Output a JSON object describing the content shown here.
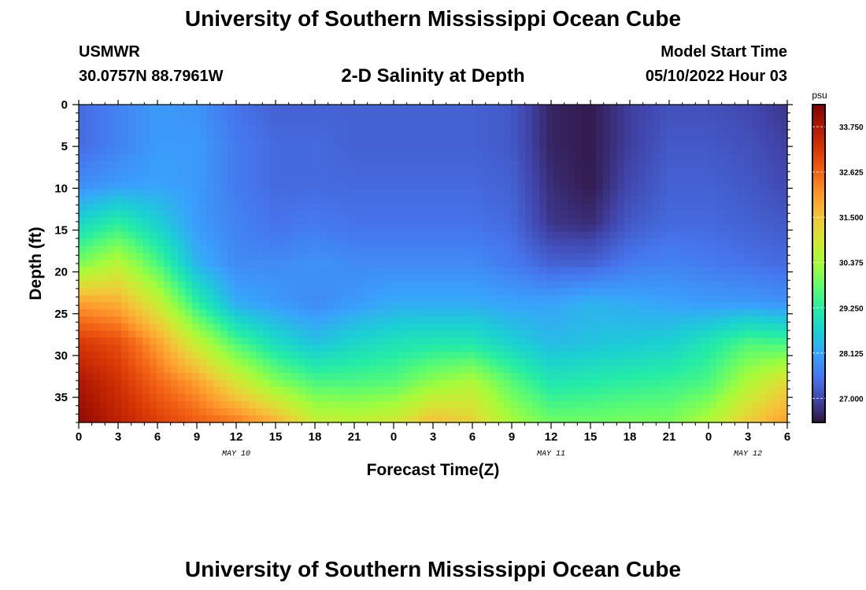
{
  "header": {
    "title": "University of Southern Mississippi Ocean Cube",
    "station": "USMWR",
    "coordinates": "30.0757N  88.7961W",
    "subtitle": "2-D Salinity at Depth",
    "model_start_label": "Model Start Time",
    "model_start_value": "05/10/2022 Hour 03"
  },
  "footer": {
    "title": "University of Southern Mississippi Ocean Cube"
  },
  "colors": {
    "colormap": [
      "#30123b",
      "#4145ab",
      "#4675ed",
      "#39a2fc",
      "#1bcfd4",
      "#24eca6",
      "#61fc6c",
      "#a4fc3b",
      "#d1e834",
      "#f3c63a",
      "#fe9b2d",
      "#f36315",
      "#d93806",
      "#b11901",
      "#7a0402"
    ]
  },
  "chart_data": {
    "type": "heatmap",
    "xlabel": "Forecast Time(Z)",
    "ylabel": "Depth (ft)",
    "x_tick_labels": [
      "0",
      "3",
      "6",
      "9",
      "12",
      "15",
      "18",
      "21",
      "0",
      "3",
      "6",
      "9",
      "12",
      "15",
      "18",
      "21",
      "0",
      "3",
      "6"
    ],
    "x_range_hours": [
      0,
      54
    ],
    "date_labels": [
      {
        "label": "MAY 10",
        "hour": 12
      },
      {
        "label": "MAY 11",
        "hour": 36
      },
      {
        "label": "MAY 12",
        "hour": 51
      }
    ],
    "y_ticks": [
      0,
      5,
      10,
      15,
      20,
      25,
      30,
      35
    ],
    "ylim": [
      0,
      38
    ],
    "colorbar": {
      "unit": "psu",
      "min": 26.4,
      "max": 34.3,
      "ticks": [
        "33.750",
        "32.625",
        "31.500",
        "30.375",
        "29.250",
        "28.125",
        "27.000"
      ],
      "tick_values": [
        33.75,
        32.625,
        31.5,
        30.375,
        29.25,
        28.125,
        27.0
      ]
    },
    "depths": [
      0,
      4.75,
      9.5,
      14.25,
      19,
      23.75,
      28.5,
      33.25,
      38
    ],
    "times": [
      0,
      3,
      6,
      9,
      12,
      15,
      18,
      21,
      24,
      27,
      30,
      33,
      36,
      39,
      42,
      45,
      48,
      51,
      54
    ],
    "values": [
      [
        27.4,
        27.7,
        28.0,
        27.9,
        27.5,
        27.3,
        27.3,
        27.3,
        27.3,
        27.3,
        27.3,
        27.2,
        26.6,
        26.5,
        26.9,
        27.1,
        27.1,
        27.0,
        26.8
      ],
      [
        27.4,
        27.7,
        28.0,
        28.0,
        27.6,
        27.4,
        27.4,
        27.3,
        27.3,
        27.3,
        27.3,
        27.2,
        26.6,
        26.5,
        26.9,
        27.2,
        27.2,
        27.1,
        26.9
      ],
      [
        27.8,
        28.0,
        28.1,
        28.0,
        27.6,
        27.4,
        27.4,
        27.4,
        27.4,
        27.4,
        27.4,
        27.3,
        26.7,
        26.5,
        27.0,
        27.3,
        27.3,
        27.2,
        27.0
      ],
      [
        28.8,
        29.3,
        28.7,
        28.0,
        27.7,
        27.5,
        27.6,
        27.5,
        27.5,
        27.5,
        27.5,
        27.4,
        26.8,
        26.7,
        27.2,
        27.4,
        27.4,
        27.3,
        27.2
      ],
      [
        30.0,
        30.6,
        29.6,
        28.3,
        27.8,
        27.8,
        27.9,
        27.8,
        27.8,
        27.8,
        27.8,
        27.6,
        27.3,
        27.3,
        27.6,
        27.7,
        27.6,
        27.5,
        27.4
      ],
      [
        32.0,
        31.8,
        30.8,
        29.3,
        28.2,
        28.0,
        27.8,
        28.0,
        28.2,
        28.2,
        28.2,
        28.1,
        28.1,
        28.3,
        28.2,
        28.1,
        28.0,
        28.0,
        27.9
      ],
      [
        33.2,
        32.9,
        32.0,
        30.7,
        29.6,
        28.9,
        28.5,
        28.8,
        29.0,
        29.1,
        29.1,
        28.7,
        28.4,
        28.5,
        28.6,
        28.7,
        29.1,
        29.6,
        29.5
      ],
      [
        33.8,
        33.3,
        32.6,
        32.0,
        31.0,
        30.1,
        29.6,
        29.6,
        29.7,
        30.2,
        30.5,
        29.7,
        29.1,
        29.2,
        29.3,
        29.4,
        29.6,
        30.5,
        31.2
      ],
      [
        34.1,
        33.6,
        33.1,
        32.7,
        32.4,
        31.8,
        30.8,
        30.7,
        30.9,
        31.6,
        31.3,
        30.4,
        29.9,
        29.9,
        30.0,
        30.0,
        30.5,
        31.4,
        32.0
      ]
    ]
  }
}
